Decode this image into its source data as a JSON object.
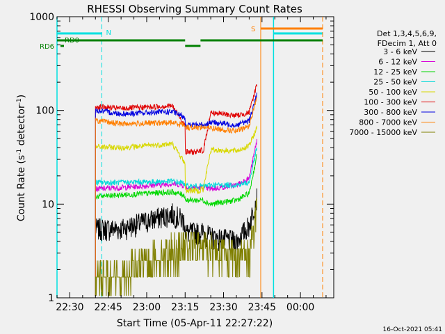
{
  "chart_data": {
    "type": "line",
    "title": "RHESSI Observing Summary Count Rates",
    "xlabel": "Start Time (05-Apr-11 22:27:22)",
    "ylabel": "Count Rate (s⁻¹ detector⁻¹)",
    "y_scale": "log",
    "ylim": [
      1,
      1000
    ],
    "xlim_minutes": [
      -5,
      103
    ],
    "x_ticks": [
      {
        "label": "22:30",
        "t": 0
      },
      {
        "label": "22:45",
        "t": 15
      },
      {
        "label": "23:00",
        "t": 30
      },
      {
        "label": "23:15",
        "t": 45
      },
      {
        "label": "23:30",
        "t": 60
      },
      {
        "label": "23:45",
        "t": 75
      },
      {
        "label": "00:00",
        "t": 90
      }
    ],
    "y_ticks": [
      {
        "label": "1",
        "v": 1
      },
      {
        "label": "10",
        "v": 10
      },
      {
        "label": "100",
        "v": 100
      },
      {
        "label": "1000",
        "v": 1000
      }
    ],
    "legend_header": [
      "Det 1,3,4,5,6,9,",
      "FDecim 1, Att 0"
    ],
    "legend_position": "right",
    "series": [
      {
        "name": "3 - 6 keV",
        "color": "#000000",
        "values": [
          5.5,
          5.5,
          8,
          5,
          4.5,
          4,
          6,
          12
        ]
      },
      {
        "name": "6 - 12 keV",
        "color": "#d800d8",
        "values": [
          14.5,
          15,
          16.5,
          15,
          14.5,
          16,
          19,
          48
        ]
      },
      {
        "name": "12 - 25 keV",
        "color": "#00d800",
        "values": [
          12,
          12.5,
          13.5,
          11,
          10,
          11,
          13,
          33
        ]
      },
      {
        "name": "25 - 50 keV",
        "color": "#00d8d8",
        "values": [
          17,
          17,
          17.5,
          15.5,
          16,
          16,
          17,
          40
        ]
      },
      {
        "name": "50 - 100 keV",
        "color": "#d8d800",
        "values": [
          41,
          40,
          44,
          14,
          38,
          37,
          42,
          65
        ]
      },
      {
        "name": "100 - 300 keV",
        "color": "#e00000",
        "values": [
          110,
          105,
          112,
          36,
          95,
          88,
          95,
          190
        ]
      },
      {
        "name": "300 - 800 keV",
        "color": "#0000e0",
        "values": [
          100,
          92,
          97,
          70,
          75,
          70,
          78,
          150
        ]
      },
      {
        "name": "800 - 7000 keV",
        "color": "#ff7f00",
        "values": [
          78,
          72,
          74,
          66,
          65,
          60,
          68,
          140
        ]
      },
      {
        "name": "7000 - 15000 keV",
        "color": "#808000",
        "values": [
          1.6,
          1.8,
          3.4,
          3.6,
          3.4,
          2.8,
          3,
          10
        ]
      }
    ],
    "series_times_minutes": [
      10,
      20,
      40,
      52,
      55,
      65,
      70,
      73
    ],
    "flags": [
      {
        "label": "N",
        "color": "#00e0e0"
      },
      {
        "label": "S",
        "color": "#ff7f00"
      },
      {
        "label": "RD0",
        "color": "#008000"
      },
      {
        "label": "RD6",
        "color": "#008000"
      }
    ],
    "timestamp": "16-Oct-2021 05:41"
  }
}
